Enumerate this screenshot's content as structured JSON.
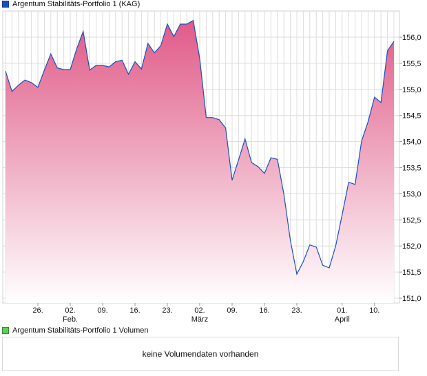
{
  "chart_data": {
    "type": "area",
    "title": "Argentum Stabilitäts-Portfolio 1 (KAG)",
    "ylim": [
      150.9,
      156.5
    ],
    "yticks": [
      "151,0",
      "151,5",
      "152,0",
      "152,5",
      "153,0",
      "153,5",
      "154,0",
      "154,5",
      "155,0",
      "155,5",
      "156,0"
    ],
    "ytick_values": [
      151.0,
      151.5,
      152.0,
      152.5,
      153.0,
      153.5,
      154.0,
      154.5,
      155.0,
      155.5,
      156.0
    ],
    "xticks": [
      {
        "index": 5,
        "label": "26.",
        "sub": ""
      },
      {
        "index": 10,
        "label": "02.",
        "sub": "Feb."
      },
      {
        "index": 15,
        "label": "09.",
        "sub": ""
      },
      {
        "index": 20,
        "label": "16.",
        "sub": ""
      },
      {
        "index": 25,
        "label": "23.",
        "sub": ""
      },
      {
        "index": 30,
        "label": "02.",
        "sub": "März"
      },
      {
        "index": 35,
        "label": "09.",
        "sub": ""
      },
      {
        "index": 40,
        "label": "16.",
        "sub": ""
      },
      {
        "index": 45,
        "label": "23.",
        "sub": ""
      },
      {
        "index": 52,
        "label": "01.",
        "sub": "April"
      },
      {
        "index": 57,
        "label": "10.",
        "sub": ""
      }
    ],
    "values": [
      155.35,
      154.96,
      155.08,
      155.18,
      155.13,
      155.04,
      155.37,
      155.68,
      155.41,
      155.38,
      155.38,
      155.78,
      156.11,
      155.37,
      155.46,
      155.46,
      155.43,
      155.53,
      155.56,
      155.29,
      155.53,
      155.39,
      155.88,
      155.7,
      155.84,
      156.25,
      156.01,
      156.25,
      156.25,
      156.32,
      155.59,
      154.46,
      154.46,
      154.42,
      154.26,
      153.26,
      153.65,
      154.05,
      153.6,
      153.52,
      153.39,
      153.69,
      153.66,
      152.99,
      152.11,
      151.46,
      151.7,
      152.02,
      151.98,
      151.63,
      151.58,
      152.0,
      152.6,
      153.22,
      153.18,
      154.01,
      154.38,
      154.85,
      154.75,
      155.74,
      155.92
    ],
    "line_color": "#1a4fc0",
    "fill_top": "#e05a88",
    "fill_bottom": "#ffffff",
    "grid": true
  },
  "legend": {
    "price_label": "Argentum Stabilitäts-Portfolio 1 (KAG)",
    "price_color": "#1a4fc0",
    "volume_label": "Argentum Stabilitäts-Portfolio 1 Volumen",
    "volume_color": "#5fcf5f"
  },
  "volume": {
    "empty_message": "keine Volumendaten vorhanden"
  }
}
